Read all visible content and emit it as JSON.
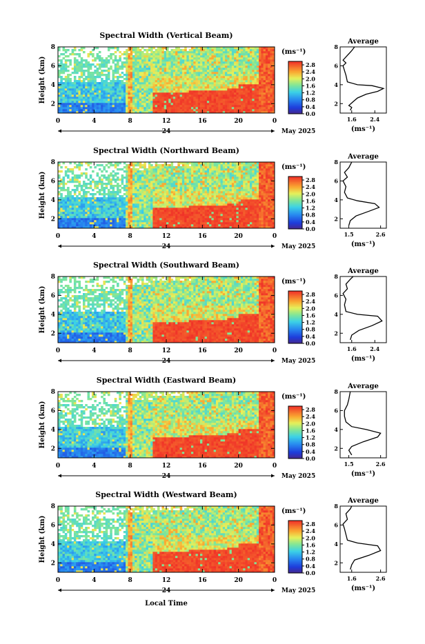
{
  "figure": {
    "x_axis_label": "Local Time",
    "date_label": "May 2025",
    "day_label": "24",
    "colorbar_unit": "(ms⁻¹)",
    "avg_title": "Average",
    "avg_unit": "(ms⁻¹)",
    "y_axis_label": "Height (km)"
  },
  "chart_data": [
    {
      "type": "heatmap",
      "title": "Spectral Width (Vertical Beam)",
      "ylabel": "Height (km)",
      "xlabel": "",
      "x_ticks": [
        "0",
        "4",
        "8",
        "12",
        "16",
        "20",
        "0"
      ],
      "y_ticks": [
        "2",
        "4",
        "6",
        "8"
      ],
      "xlim": [
        0,
        24
      ],
      "ylim": [
        1,
        8
      ],
      "colorbar": {
        "ticks": [
          "0.0",
          "0.4",
          "0.8",
          "1.2",
          "1.6",
          "2.0",
          "2.4",
          "2.8"
        ],
        "range": [
          0,
          3.0
        ]
      },
      "average_profile": {
        "x_ticks": [
          "1.6",
          "2.4"
        ],
        "xlim": [
          1.2,
          2.8
        ],
        "ylim": [
          1,
          8
        ],
        "points": [
          [
            1.55,
            1.3
          ],
          [
            1.6,
            1.6
          ],
          [
            1.5,
            1.8
          ],
          [
            1.65,
            2.2
          ],
          [
            1.8,
            2.6
          ],
          [
            2.1,
            3.0
          ],
          [
            2.5,
            3.3
          ],
          [
            2.7,
            3.6
          ],
          [
            2.3,
            3.9
          ],
          [
            1.8,
            4.0
          ],
          [
            1.45,
            4.3
          ],
          [
            1.4,
            5.0
          ],
          [
            1.35,
            5.5
          ],
          [
            1.3,
            6.0
          ],
          [
            1.4,
            6.3
          ],
          [
            1.3,
            6.6
          ],
          [
            1.45,
            7.1
          ],
          [
            1.6,
            7.6
          ],
          [
            1.7,
            8.0
          ]
        ]
      }
    },
    {
      "type": "heatmap",
      "title": "Spectral Width (Northward Beam)",
      "ylabel": "Height (km)",
      "xlabel": "",
      "x_ticks": [
        "0",
        "4",
        "8",
        "12",
        "16",
        "20",
        "0"
      ],
      "y_ticks": [
        "2",
        "4",
        "6",
        "8"
      ],
      "xlim": [
        0,
        24
      ],
      "ylim": [
        1,
        8
      ],
      "colorbar": {
        "ticks": [
          "0.0",
          "0.4",
          "0.8",
          "1.2",
          "1.6",
          "2.0",
          "2.4",
          "2.8"
        ],
        "range": [
          0,
          3.0
        ]
      },
      "average_profile": {
        "x_ticks": [
          "1.5",
          "2.6"
        ],
        "xlim": [
          1.2,
          2.8
        ],
        "ylim": [
          1,
          8
        ],
        "points": [
          [
            1.5,
            1.3
          ],
          [
            1.55,
            1.8
          ],
          [
            1.75,
            2.3
          ],
          [
            2.2,
            2.8
          ],
          [
            2.55,
            3.2
          ],
          [
            2.4,
            3.6
          ],
          [
            1.8,
            3.9
          ],
          [
            1.45,
            4.2
          ],
          [
            1.35,
            4.8
          ],
          [
            1.4,
            5.4
          ],
          [
            1.3,
            6.0
          ],
          [
            1.45,
            6.4
          ],
          [
            1.35,
            6.9
          ],
          [
            1.5,
            7.4
          ],
          [
            1.6,
            8.0
          ]
        ]
      }
    },
    {
      "type": "heatmap",
      "title": "Spectral Width (Southward Beam)",
      "ylabel": "Height (km)",
      "xlabel": "",
      "x_ticks": [
        "0",
        "4",
        "8",
        "12",
        "16",
        "20",
        "0"
      ],
      "y_ticks": [
        "2",
        "4",
        "6",
        "8"
      ],
      "xlim": [
        0,
        24
      ],
      "ylim": [
        1,
        8
      ],
      "colorbar": {
        "ticks": [
          "0.0",
          "0.4",
          "0.8",
          "1.2",
          "1.6",
          "2.0",
          "2.4",
          "2.8"
        ],
        "range": [
          0,
          3.0
        ]
      },
      "average_profile": {
        "x_ticks": [
          "1.6",
          "2.4"
        ],
        "xlim": [
          1.2,
          2.8
        ],
        "ylim": [
          1,
          8
        ],
        "points": [
          [
            1.55,
            1.3
          ],
          [
            1.6,
            1.8
          ],
          [
            1.85,
            2.3
          ],
          [
            2.3,
            2.8
          ],
          [
            2.65,
            3.3
          ],
          [
            2.5,
            3.8
          ],
          [
            1.8,
            4.0
          ],
          [
            1.4,
            4.3
          ],
          [
            1.35,
            5.0
          ],
          [
            1.4,
            5.6
          ],
          [
            1.3,
            6.2
          ],
          [
            1.45,
            6.7
          ],
          [
            1.4,
            7.2
          ],
          [
            1.55,
            7.7
          ],
          [
            1.65,
            8.0
          ]
        ]
      }
    },
    {
      "type": "heatmap",
      "title": "Spectral Width (Eastward Beam)",
      "ylabel": "Height (km)",
      "xlabel": "",
      "x_ticks": [
        "0",
        "4",
        "8",
        "12",
        "16",
        "20",
        "0"
      ],
      "y_ticks": [
        "2",
        "4",
        "6",
        "8"
      ],
      "xlim": [
        0,
        24
      ],
      "ylim": [
        1,
        8
      ],
      "colorbar": {
        "ticks": [
          "0.0",
          "0.4",
          "0.8",
          "1.2",
          "1.6",
          "2.0",
          "2.4",
          "2.8"
        ],
        "range": [
          0,
          3.0
        ]
      },
      "average_profile": {
        "x_ticks": [
          "1.5",
          "2.6"
        ],
        "xlim": [
          1.2,
          2.8
        ],
        "ylim": [
          1,
          8
        ],
        "points": [
          [
            1.6,
            1.3
          ],
          [
            1.5,
            1.8
          ],
          [
            1.6,
            2.2
          ],
          [
            2.0,
            2.7
          ],
          [
            2.5,
            3.2
          ],
          [
            2.6,
            3.6
          ],
          [
            2.1,
            4.0
          ],
          [
            1.6,
            4.3
          ],
          [
            1.4,
            4.8
          ],
          [
            1.35,
            5.4
          ],
          [
            1.35,
            6.0
          ],
          [
            1.45,
            6.6
          ],
          [
            1.5,
            7.2
          ],
          [
            1.55,
            8.0
          ]
        ]
      }
    },
    {
      "type": "heatmap",
      "title": "Spectral Width (Westward Beam)",
      "ylabel": "Height (km)",
      "xlabel": "Local Time",
      "x_ticks": [
        "0",
        "4",
        "8",
        "12",
        "16",
        "20",
        "0"
      ],
      "y_ticks": [
        "2",
        "4",
        "6",
        "8"
      ],
      "xlim": [
        0,
        24
      ],
      "ylim": [
        1,
        8
      ],
      "colorbar": {
        "ticks": [
          "0.0",
          "0.4",
          "0.8",
          "1.2",
          "1.6",
          "2.0",
          "2.4",
          "2.8"
        ],
        "range": [
          0,
          3.0
        ]
      },
      "average_profile": {
        "x_ticks": [
          "1.6",
          "2.6"
        ],
        "xlim": [
          1.2,
          2.8
        ],
        "ylim": [
          1,
          8
        ],
        "points": [
          [
            1.55,
            1.3
          ],
          [
            1.6,
            1.8
          ],
          [
            1.7,
            2.3
          ],
          [
            2.2,
            2.8
          ],
          [
            2.6,
            3.3
          ],
          [
            2.5,
            3.8
          ],
          [
            1.8,
            4.1
          ],
          [
            1.45,
            4.4
          ],
          [
            1.4,
            5.0
          ],
          [
            1.35,
            5.6
          ],
          [
            1.3,
            6.1
          ],
          [
            1.45,
            6.6
          ],
          [
            1.4,
            7.2
          ],
          [
            1.55,
            7.7
          ],
          [
            1.6,
            8.0
          ]
        ]
      }
    }
  ]
}
